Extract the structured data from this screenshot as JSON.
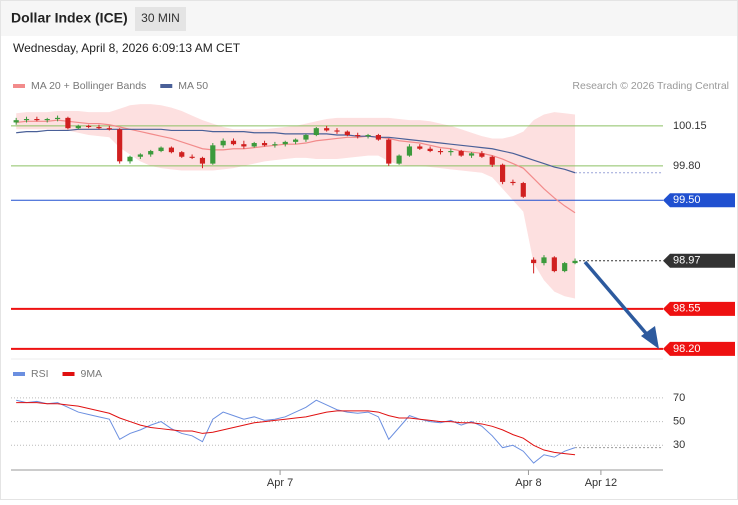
{
  "header": {
    "title": "Dollar Index (ICE)",
    "interval": "30 MIN",
    "date": "Wednesday, April 8, 2026 6:09:13 AM CET",
    "credit": "Research © 2026 Trading Central"
  },
  "chart_data": [
    {
      "type": "candlestick",
      "up_color": "#3c9a3c",
      "down_color": "#d02020",
      "xlim": [
        -0.5,
        62.5
      ],
      "ylim": [
        98.12,
        100.42
      ],
      "open": [
        100.18,
        100.2,
        100.21,
        100.2,
        100.21,
        100.22,
        100.13,
        100.15,
        100.14,
        100.13,
        100.12,
        99.84,
        99.88,
        99.9,
        99.93,
        99.96,
        99.92,
        99.88,
        99.87,
        99.82,
        99.98,
        100.02,
        99.99,
        99.97,
        100.0,
        99.98,
        99.99,
        100.01,
        100.03,
        100.07,
        100.13,
        100.11,
        100.1,
        100.07,
        100.06,
        100.07,
        100.03,
        99.82,
        99.89,
        99.97,
        99.95,
        99.93,
        99.92,
        99.93,
        99.89,
        99.91,
        99.88,
        99.81,
        99.66,
        99.65,
        98.98,
        98.95,
        99.0,
        98.88,
        98.95
      ],
      "high": [
        100.22,
        100.23,
        100.23,
        100.22,
        100.24,
        100.23,
        100.16,
        100.16,
        100.16,
        100.15,
        100.13,
        99.89,
        99.91,
        99.94,
        99.97,
        99.97,
        99.93,
        99.9,
        99.88,
        100.0,
        100.04,
        100.04,
        100.02,
        100.01,
        100.02,
        100.01,
        100.02,
        100.04,
        100.08,
        100.14,
        100.15,
        100.13,
        100.11,
        100.09,
        100.08,
        100.08,
        100.04,
        99.9,
        99.99,
        99.99,
        99.97,
        99.95,
        99.95,
        99.94,
        99.92,
        99.93,
        99.89,
        99.82,
        99.68,
        99.66,
        99.0,
        99.02,
        99.01,
        98.96,
        98.99
      ],
      "low": [
        100.16,
        100.18,
        100.19,
        100.18,
        100.19,
        100.12,
        100.12,
        100.13,
        100.12,
        100.11,
        99.82,
        99.82,
        99.86,
        99.88,
        99.92,
        99.91,
        99.87,
        99.86,
        99.78,
        99.81,
        99.96,
        99.98,
        99.95,
        99.96,
        99.97,
        99.96,
        99.97,
        99.99,
        100.01,
        100.06,
        100.1,
        100.08,
        100.06,
        100.04,
        100.04,
        100.02,
        99.8,
        99.81,
        99.88,
        99.94,
        99.92,
        99.9,
        99.89,
        99.88,
        99.87,
        99.87,
        99.79,
        99.64,
        99.63,
        99.52,
        98.86,
        98.93,
        98.87,
        98.87,
        98.94
      ],
      "close": [
        100.2,
        100.21,
        100.2,
        100.21,
        100.22,
        100.13,
        100.15,
        100.14,
        100.13,
        100.12,
        99.84,
        99.88,
        99.9,
        99.93,
        99.96,
        99.92,
        99.88,
        99.87,
        99.82,
        99.98,
        100.02,
        99.99,
        99.97,
        100.0,
        99.98,
        99.99,
        100.01,
        100.03,
        100.07,
        100.13,
        100.11,
        100.1,
        100.07,
        100.06,
        100.07,
        100.03,
        99.82,
        99.89,
        99.97,
        99.95,
        99.93,
        99.92,
        99.93,
        99.89,
        99.91,
        99.88,
        99.81,
        99.66,
        99.65,
        99.53,
        98.95,
        99.0,
        98.88,
        98.95,
        98.97
      ],
      "overlays": [
        {
          "name": "MA 20 + Bollinger Bands",
          "color": "#f28b8b",
          "band_color": "#fde0e0",
          "values": [
            100.18,
            100.19,
            100.19,
            100.19,
            100.2,
            100.19,
            100.18,
            100.17,
            100.17,
            100.16,
            100.14,
            100.12,
            100.1,
            100.08,
            100.06,
            100.04,
            100.01,
            99.98,
            99.95,
            99.94,
            99.94,
            99.95,
            99.95,
            99.96,
            99.97,
            99.98,
            99.99,
            99.99,
            100.0,
            100.02,
            100.03,
            100.04,
            100.05,
            100.05,
            100.06,
            100.05,
            100.04,
            100.02,
            100.01,
            100.0,
            99.98,
            99.96,
            99.95,
            99.93,
            99.92,
            99.91,
            99.89,
            99.86,
            99.82,
            99.78,
            99.69,
            99.6,
            99.52,
            99.45,
            99.39
          ],
          "upper": [
            100.26,
            100.27,
            100.27,
            100.27,
            100.28,
            100.28,
            100.28,
            100.27,
            100.27,
            100.27,
            100.3,
            100.33,
            100.34,
            100.34,
            100.33,
            100.31,
            100.28,
            100.24,
            100.2,
            100.17,
            100.14,
            100.12,
            100.12,
            100.12,
            100.12,
            100.13,
            100.14,
            100.15,
            100.17,
            100.19,
            100.21,
            100.22,
            100.22,
            100.22,
            100.22,
            100.22,
            100.22,
            100.21,
            100.2,
            100.2,
            100.19,
            100.17,
            100.15,
            100.12,
            100.09,
            100.06,
            100.04,
            100.04,
            100.06,
            100.1,
            100.2,
            100.25,
            100.27,
            100.26,
            100.25
          ],
          "lower": [
            100.12,
            100.12,
            100.12,
            100.12,
            100.12,
            100.11,
            100.09,
            100.07,
            100.06,
            100.05,
            99.96,
            99.9,
            99.84,
            99.8,
            99.78,
            99.77,
            99.76,
            99.76,
            99.76,
            99.76,
            99.77,
            99.78,
            99.8,
            99.82,
            99.84,
            99.85,
            99.86,
            99.87,
            99.87,
            99.86,
            99.86,
            99.86,
            99.87,
            99.88,
            99.89,
            99.89,
            99.84,
            99.81,
            99.8,
            99.8,
            99.79,
            99.78,
            99.77,
            99.76,
            99.75,
            99.74,
            99.7,
            99.6,
            99.5,
            99.4,
            98.95,
            98.8,
            98.7,
            98.66,
            98.64
          ]
        },
        {
          "name": "MA 50",
          "color": "#4a6098",
          "values": [
            100.09,
            100.1,
            100.1,
            100.11,
            100.11,
            100.11,
            100.12,
            100.12,
            100.12,
            100.12,
            100.12,
            100.12,
            100.12,
            100.12,
            100.12,
            100.11,
            100.11,
            100.11,
            100.11,
            100.1,
            100.1,
            100.1,
            100.1,
            100.09,
            100.09,
            100.09,
            100.08,
            100.08,
            100.08,
            100.08,
            100.08,
            100.07,
            100.07,
            100.06,
            100.06,
            100.05,
            100.05,
            100.04,
            100.03,
            100.02,
            100.01,
            100.0,
            99.99,
            99.98,
            99.97,
            99.96,
            99.95,
            99.93,
            99.91,
            99.88,
            99.85,
            99.82,
            99.79,
            99.77,
            99.74
          ]
        }
      ],
      "levels": [
        {
          "value": 100.15,
          "label": "100.15",
          "color": "#8cc063",
          "width": 1,
          "badge": false,
          "dash": false
        },
        {
          "value": 99.8,
          "label": "99.80",
          "color": "#8cc063",
          "width": 1,
          "badge": false,
          "dash": false
        },
        {
          "value": 99.5,
          "label": "99.50",
          "color": "#2050d0",
          "width": 1,
          "badge": true,
          "dash": false
        },
        {
          "value": 98.97,
          "label": "98.97",
          "color": "#333333",
          "width": 1,
          "badge": true,
          "dash": true
        },
        {
          "value": 98.55,
          "label": "98.55",
          "color": "#ee1111",
          "width": 2,
          "badge": true,
          "dash": false
        },
        {
          "value": 98.2,
          "label": "98.20",
          "color": "#ee1111",
          "width": 2,
          "badge": true,
          "dash": false
        }
      ]
    },
    {
      "type": "line",
      "xlim": [
        -0.5,
        62.5
      ],
      "ylim": [
        10,
        80
      ],
      "yticks": [
        70,
        50,
        30
      ],
      "xticks": [
        {
          "value": 25.5,
          "label": "Apr 7"
        },
        {
          "value": 49.5,
          "label": "Apr 8"
        },
        {
          "value": 56.5,
          "label": "Apr 12"
        }
      ],
      "series": [
        {
          "name": "RSI",
          "color": "#6b8fe0",
          "values": [
            68,
            66,
            67,
            65,
            66,
            62,
            58,
            56,
            54,
            52,
            35,
            40,
            43,
            47,
            50,
            44,
            40,
            38,
            33,
            52,
            58,
            55,
            52,
            54,
            51,
            52,
            54,
            58,
            62,
            68,
            64,
            60,
            58,
            57,
            58,
            54,
            35,
            45,
            55,
            52,
            50,
            49,
            51,
            47,
            50,
            46,
            38,
            28,
            30,
            25,
            15,
            22,
            20,
            25,
            28
          ]
        },
        {
          "name": "9MA",
          "color": "#e01010",
          "values": [
            66,
            66,
            66,
            65,
            65,
            64,
            63,
            61,
            59,
            57,
            53,
            50,
            47,
            45,
            44,
            43,
            42,
            42,
            40,
            41,
            43,
            45,
            47,
            49,
            50,
            51,
            52,
            53,
            54,
            56,
            58,
            59,
            59,
            59,
            59,
            58,
            55,
            53,
            53,
            52,
            51,
            50,
            50,
            49,
            49,
            48,
            46,
            43,
            39,
            36,
            30,
            26,
            24,
            23,
            22
          ]
        }
      ]
    }
  ]
}
